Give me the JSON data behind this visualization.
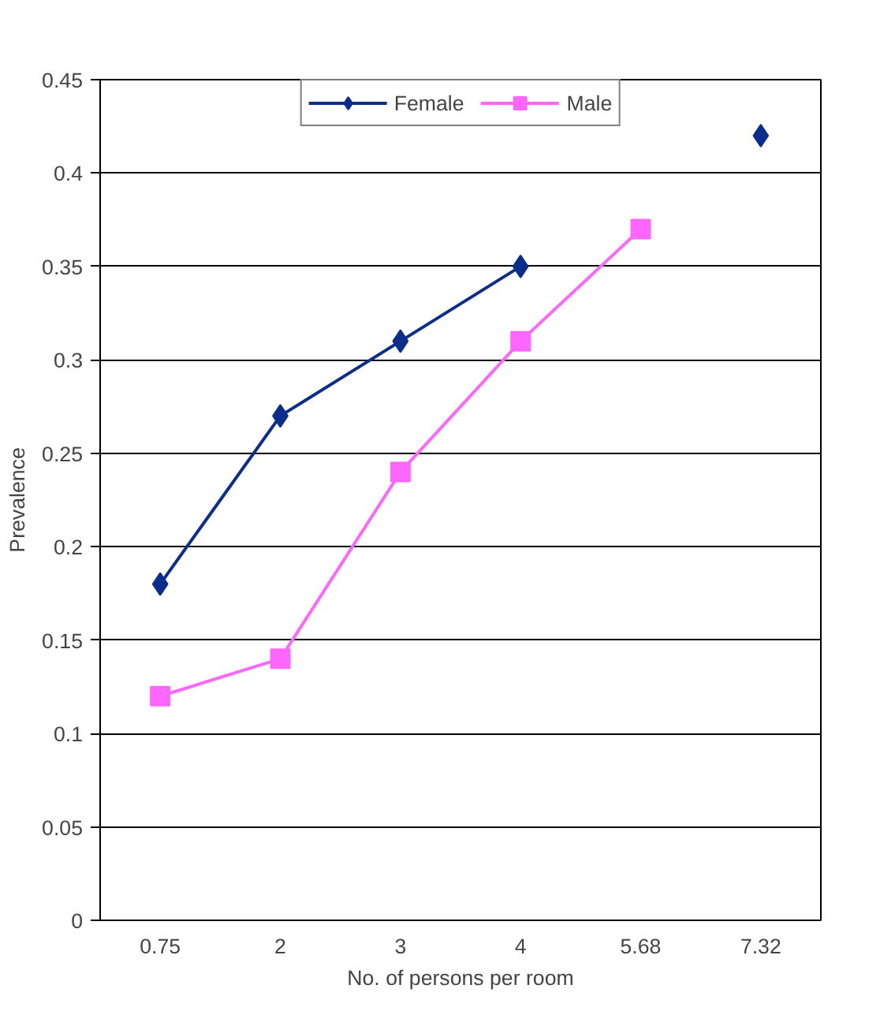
{
  "chart_data": {
    "type": "line",
    "xlabel": "No. of persons per room",
    "ylabel": "Prevalence",
    "categories": [
      "0.75",
      "2",
      "3",
      "4",
      "5.68",
      "7.32"
    ],
    "series": [
      {
        "name": "Female",
        "color": "#0b2d8c",
        "marker": "diamond",
        "values": [
          0.18,
          0.27,
          0.31,
          0.35,
          null,
          0.42
        ]
      },
      {
        "name": "Male",
        "color": "#ff66ff",
        "marker": "square",
        "values": [
          0.12,
          0.14,
          0.24,
          0.31,
          0.37,
          null
        ]
      }
    ],
    "ylim": [
      0,
      0.45
    ],
    "yticks": [
      0,
      0.05,
      0.1,
      0.15,
      0.2,
      0.25,
      0.3,
      0.35,
      0.4,
      0.45
    ],
    "grid": "y",
    "legend": "top",
    "line_style": "solid"
  }
}
